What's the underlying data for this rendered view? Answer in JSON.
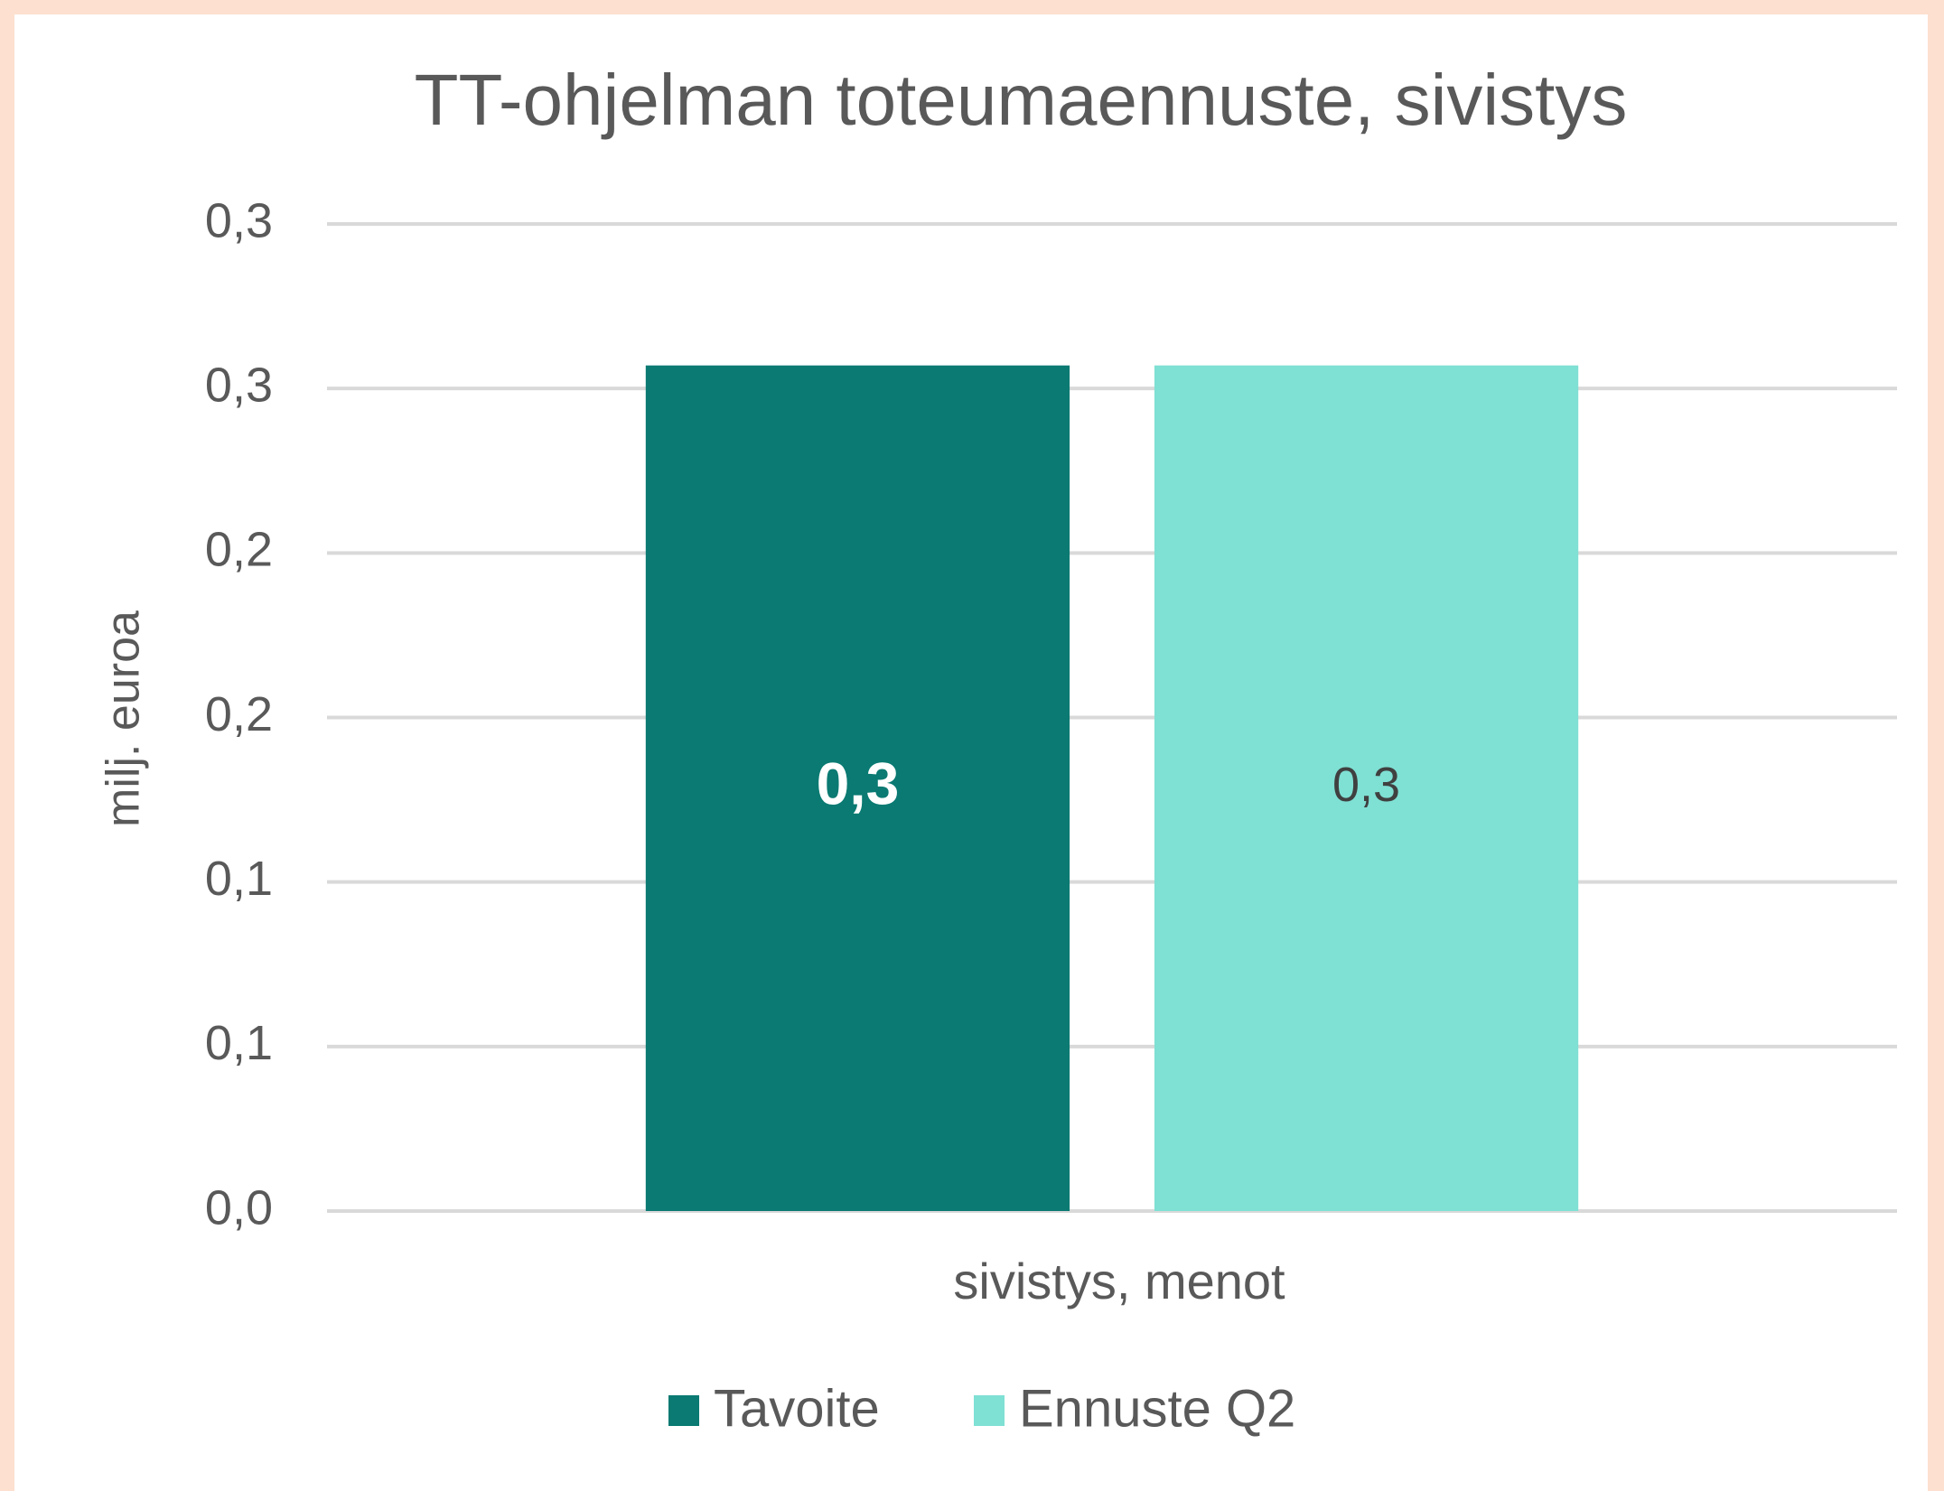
{
  "chart_data": {
    "type": "bar",
    "title": "TT-ohjelman toteumaennuste, sivistys",
    "y_label": "milj. euroa",
    "categories": [
      "sivistys, menot"
    ],
    "series": [
      {
        "name": "Tavoite",
        "color": "#0a7a72",
        "values": [
          0.257
        ],
        "value_labels": [
          "0,3"
        ]
      },
      {
        "name": "Ennuste Q2",
        "color": "#7fe0d4",
        "values": [
          0.257
        ],
        "value_labels": [
          "0,3"
        ]
      }
    ],
    "ylim": [
      0,
      0.3
    ],
    "yticks": [
      {
        "value": 0,
        "label": "0,0"
      },
      {
        "value": 0.05,
        "label": "0,1"
      },
      {
        "value": 0.1,
        "label": "0,1"
      },
      {
        "value": 0.15,
        "label": "0,2"
      },
      {
        "value": 0.2,
        "label": "0,2"
      },
      {
        "value": 0.25,
        "label": "0,3"
      },
      {
        "value": 0.3,
        "label": "0,3"
      }
    ],
    "grid": true,
    "legend": "bottom"
  }
}
